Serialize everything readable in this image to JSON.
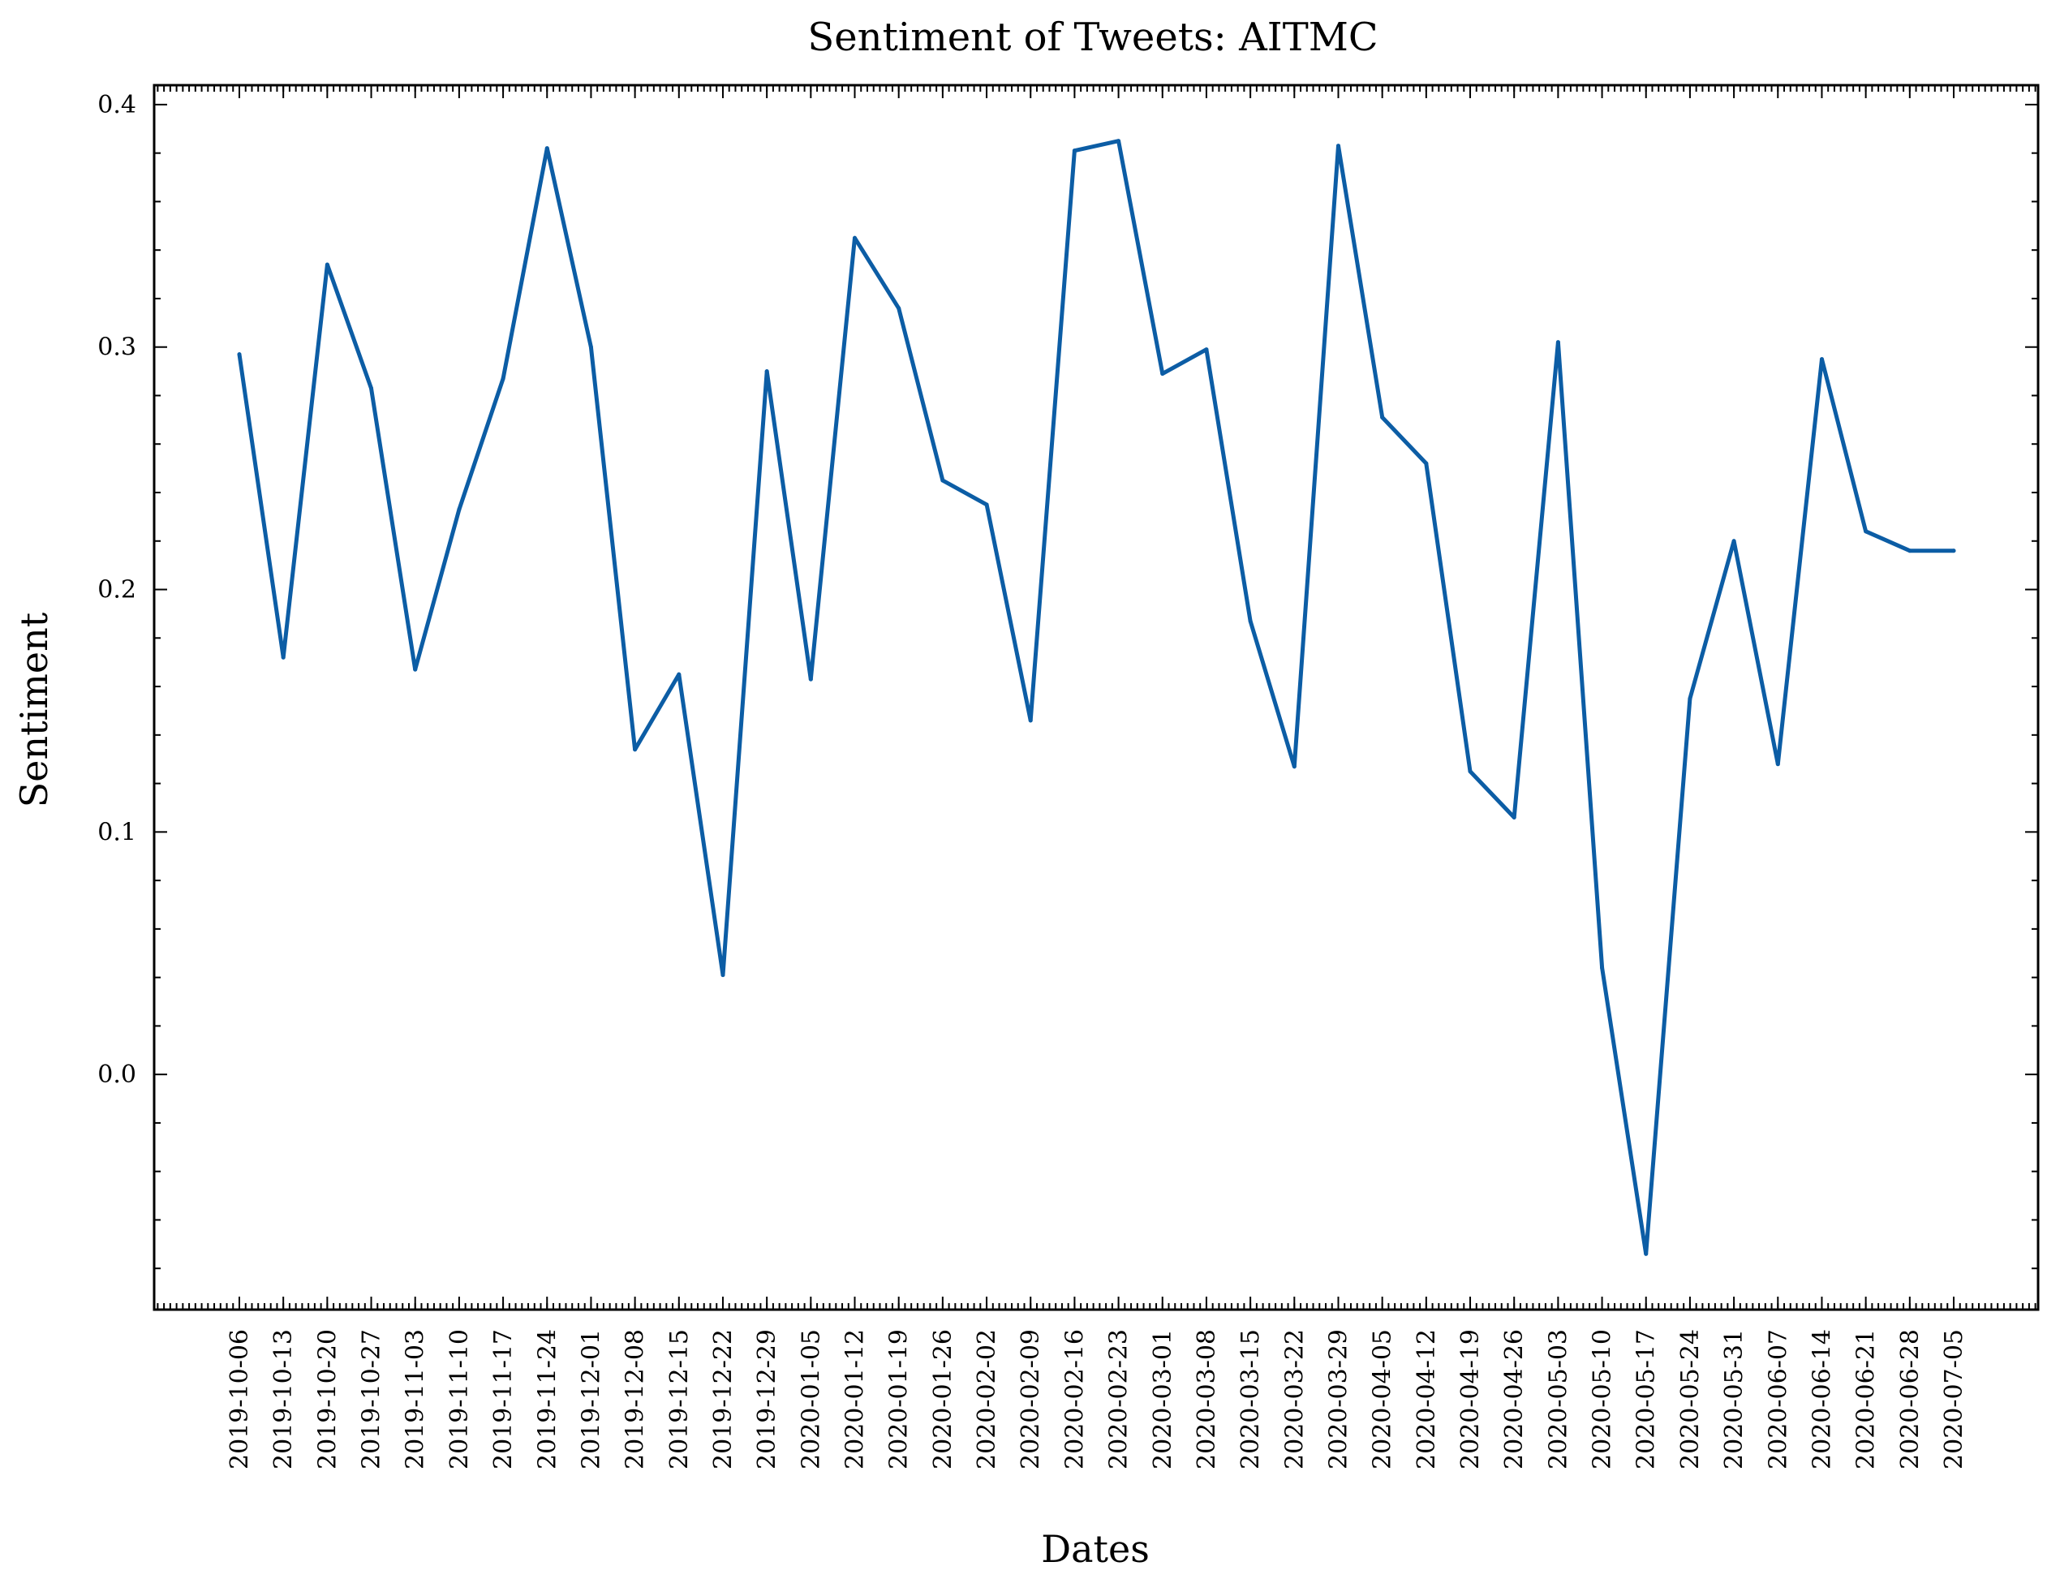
{
  "chart_data": {
    "type": "line",
    "title": "Sentiment of Tweets: AITMC",
    "xlabel": "Dates",
    "ylabel": "Sentiment",
    "ylim": [
      -0.097,
      0.408
    ],
    "yticks": [
      "0.4",
      "0.3",
      "0.2",
      "0.1",
      "0.0"
    ],
    "yticks_values": [
      0.4,
      0.3,
      0.2,
      0.1,
      0.0
    ],
    "grid": false,
    "categories": [
      "2019-10-06",
      "2019-10-13",
      "2019-10-20",
      "2019-10-27",
      "2019-11-03",
      "2019-11-10",
      "2019-11-17",
      "2019-11-24",
      "2019-12-01",
      "2019-12-08",
      "2019-12-15",
      "2019-12-22",
      "2019-12-29",
      "2020-01-05",
      "2020-01-12",
      "2020-01-19",
      "2020-01-26",
      "2020-02-02",
      "2020-02-09",
      "2020-02-16",
      "2020-02-23",
      "2020-03-01",
      "2020-03-08",
      "2020-03-15",
      "2020-03-22",
      "2020-03-29",
      "2020-04-05",
      "2020-04-12",
      "2020-04-19",
      "2020-04-26",
      "2020-05-03",
      "2020-05-10",
      "2020-05-17",
      "2020-05-24",
      "2020-05-31",
      "2020-06-07",
      "2020-06-14",
      "2020-06-21",
      "2020-06-28",
      "2020-07-05"
    ],
    "series": [
      {
        "color": "#0C5DA5",
        "values": [
          0.297,
          0.172,
          0.334,
          0.283,
          0.167,
          0.233,
          0.287,
          0.382,
          0.3,
          0.134,
          0.165,
          0.041,
          0.29,
          0.163,
          0.345,
          0.316,
          0.245,
          0.235,
          0.146,
          0.381,
          0.385,
          0.289,
          0.299,
          0.187,
          0.127,
          0.383,
          0.271,
          0.252,
          0.125,
          0.106,
          0.302,
          0.044,
          -0.074,
          0.155,
          0.22,
          0.128,
          0.295,
          0.224,
          0.216,
          0.216
        ]
      }
    ]
  }
}
